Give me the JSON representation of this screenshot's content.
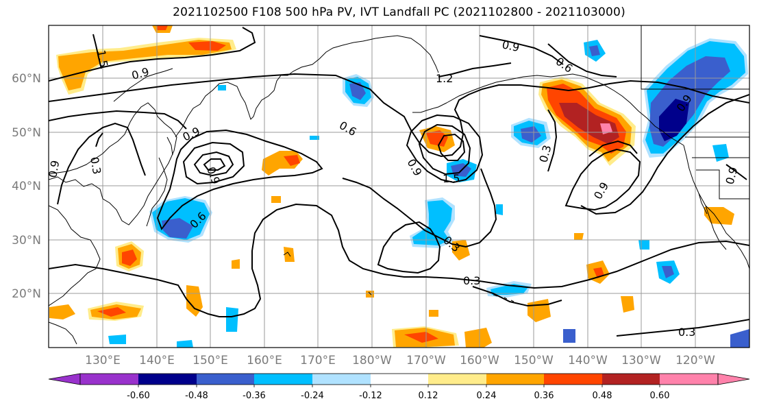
{
  "title": "2021102500 F108 500 hPa PV, IVT Landfall PC (2021102800 - 2021103000)",
  "map": {
    "lat_labels": [
      "60°N",
      "50°N",
      "40°N",
      "30°N",
      "20°N"
    ],
    "lon_labels": [
      "130°E",
      "140°E",
      "150°E",
      "160°E",
      "170°E",
      "180°W",
      "170°W",
      "160°W",
      "150°W",
      "140°W",
      "130°W",
      "120°W"
    ],
    "contour_labels": [
      "1.5",
      "0.9",
      "0.9",
      "0.6",
      "1.2",
      "0.9",
      "0.3",
      "0.9",
      "0.6",
      "0.6",
      "0.9",
      "1.5",
      "0.9",
      "0.3",
      "0.3",
      "0.3",
      "0.9",
      "0.9",
      "0.3",
      "0.9"
    ]
  },
  "colorbar": {
    "colors": [
      "#9932cc",
      "#00008b",
      "#3a5fcd",
      "#00bfff",
      "#b0e2ff",
      "#ffffff",
      "#ffec8b",
      "#ffa500",
      "#ff4500",
      "#b22222",
      "#ff82ab"
    ],
    "tick_labels": [
      "-0.60",
      "-0.48",
      "-0.36",
      "-0.24",
      "-0.12",
      "0.12",
      "0.24",
      "0.36",
      "0.48",
      "0.60"
    ]
  },
  "shading_colors": {
    "neg_strong": "#00008b",
    "neg_mid": "#3a5fcd",
    "neg_light": "#00bfff",
    "neg_pale": "#b0e2ff",
    "pos_pale": "#ffec8b",
    "pos_light": "#ffa500",
    "pos_mid": "#ff4500",
    "pos_strong": "#b22222",
    "pos_max": "#ff82ab"
  }
}
